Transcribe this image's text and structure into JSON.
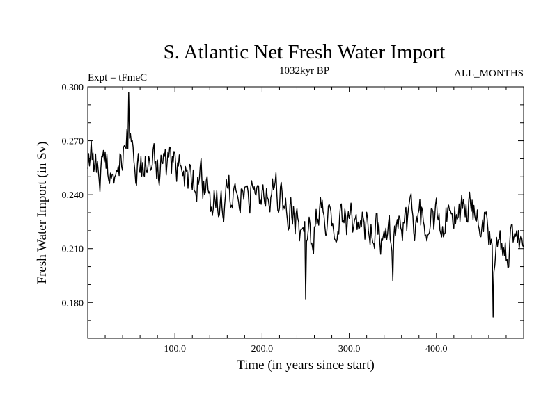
{
  "chart_data": {
    "type": "line",
    "title": "S. Atlantic Net Fresh Water Import",
    "subtitle_left": "Expt = tFmeC",
    "subtitle_center": "1032kyr BP",
    "subtitle_right": "ALL_MONTHS",
    "xlabel": "Time (in years since start)",
    "ylabel": "Fresh Water Import (in Sv)",
    "xlim": [
      0,
      500
    ],
    "ylim": [
      0.16,
      0.3
    ],
    "x_ticks": [
      100,
      200,
      300,
      400
    ],
    "x_tick_labels": [
      "100.0",
      "200.0",
      "300.0",
      "400.0"
    ],
    "y_ticks": [
      0.18,
      0.21,
      0.24,
      0.27,
      0.3
    ],
    "y_tick_labels": [
      "0.180",
      "0.210",
      "0.240",
      "0.270",
      "0.300"
    ],
    "grid": false,
    "series": [
      {
        "name": "Fresh Water Import",
        "anchors_x": [
          0,
          10,
          20,
          30,
          40,
          45,
          50,
          60,
          70,
          80,
          100,
          120,
          130,
          140,
          150,
          160,
          170,
          180,
          190,
          200,
          210,
          220,
          230,
          240,
          250,
          260,
          270,
          280,
          300,
          320,
          340,
          350,
          360,
          380,
          400,
          420,
          440,
          455,
          465,
          480,
          490,
          500
        ],
        "anchors_y": [
          0.258,
          0.252,
          0.255,
          0.258,
          0.262,
          0.27,
          0.262,
          0.255,
          0.258,
          0.255,
          0.252,
          0.25,
          0.248,
          0.235,
          0.238,
          0.242,
          0.238,
          0.245,
          0.245,
          0.24,
          0.242,
          0.24,
          0.232,
          0.225,
          0.212,
          0.22,
          0.232,
          0.228,
          0.225,
          0.222,
          0.218,
          0.212,
          0.22,
          0.225,
          0.228,
          0.23,
          0.232,
          0.225,
          0.205,
          0.21,
          0.218,
          0.215
        ],
        "noise_amplitude": 0.011,
        "extremes": [
          {
            "x": 47,
            "y": 0.297
          },
          {
            "x": 250,
            "y": 0.182
          },
          {
            "x": 465,
            "y": 0.172
          },
          {
            "x": 4,
            "y": 0.27
          },
          {
            "x": 350,
            "y": 0.192
          }
        ]
      }
    ]
  }
}
